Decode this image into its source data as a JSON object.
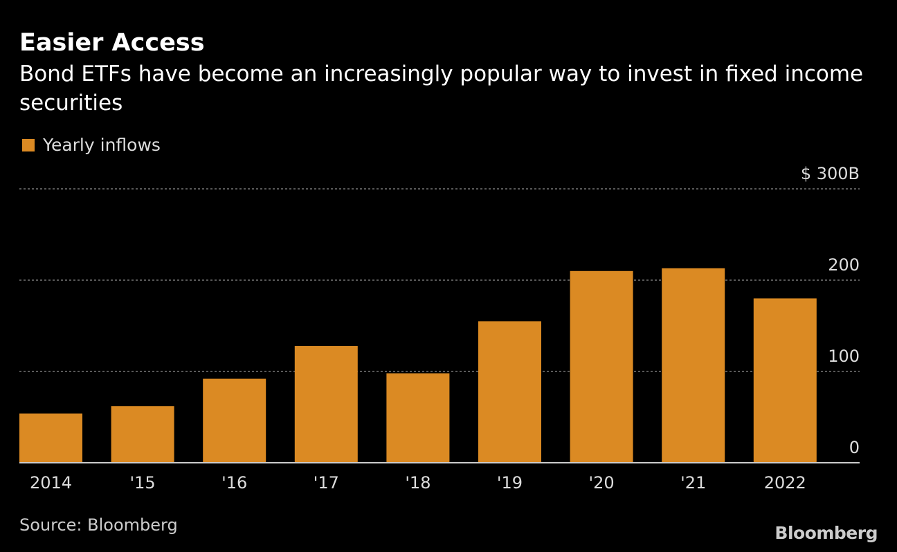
{
  "chart_data": {
    "type": "bar",
    "title": "Easier Access",
    "subtitle": "Bond ETFs have become an increasingly popular way to invest in fixed income securities",
    "categories": [
      "2014",
      "'15",
      "'16",
      "'17",
      "'18",
      "'19",
      "'20",
      "'21",
      "2022"
    ],
    "series": [
      {
        "name": "Yearly inflows",
        "values": [
          54,
          62,
          92,
          128,
          98,
          155,
          210,
          213,
          180
        ],
        "color": "#db8a23"
      }
    ],
    "ylim": [
      0,
      300
    ],
    "yticks": [
      0,
      100,
      200,
      300
    ],
    "ytick_labels": [
      "0",
      "100",
      "200",
      "$ 300B"
    ],
    "yaxis_position": "right",
    "grid": true,
    "legend": "top-left",
    "xlabel": "",
    "ylabel": ""
  },
  "source": "Source: Bloomberg",
  "logo": "Bloomberg"
}
